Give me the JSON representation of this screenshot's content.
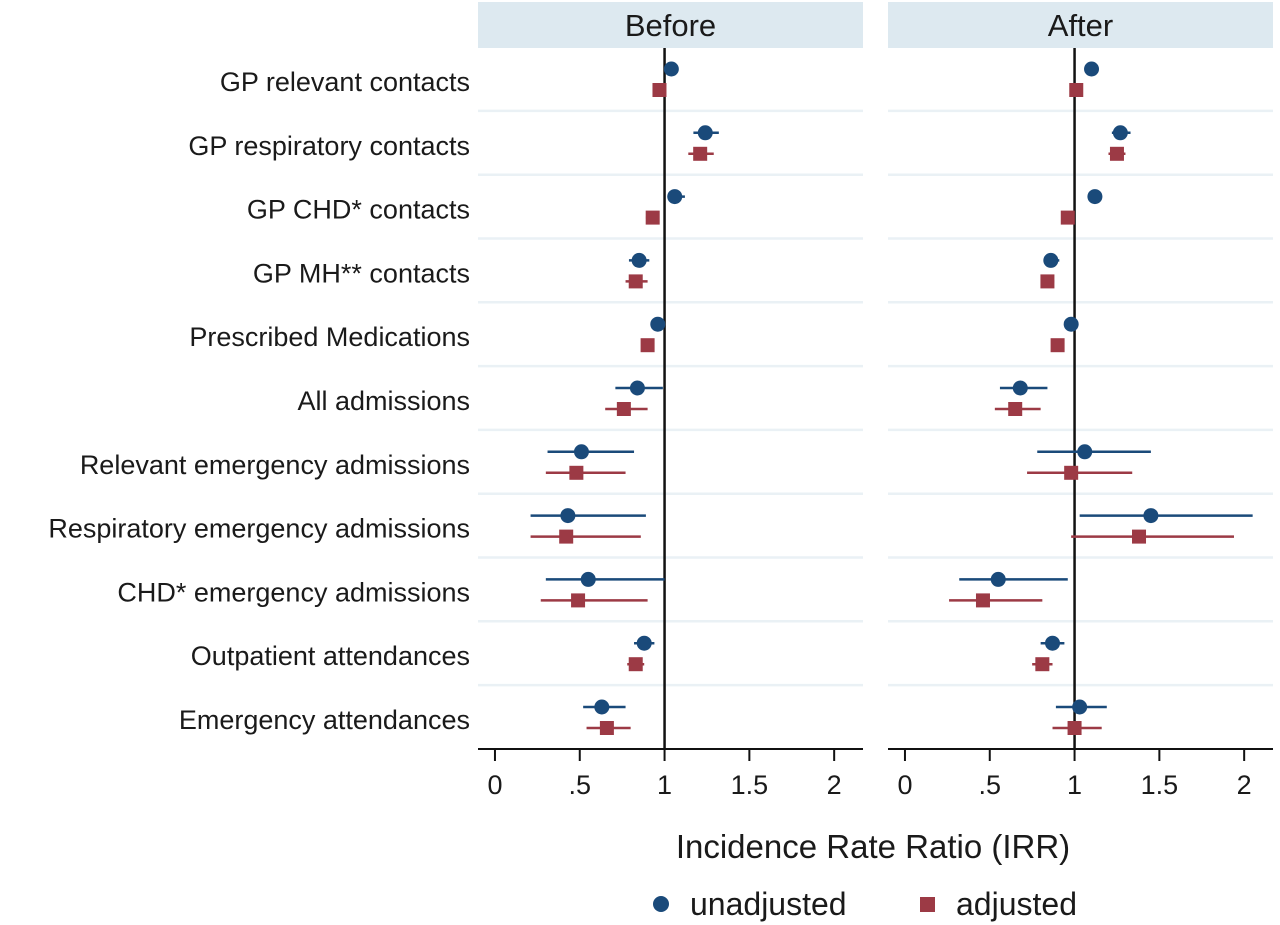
{
  "chart_data": {
    "type": "scatter",
    "subtype": "forest-plot",
    "xlabel": "Incidence Rate Ratio (IRR)",
    "xlim": [
      -0.1,
      2.17
    ],
    "ticks": [
      0,
      0.5,
      1,
      1.5,
      2
    ],
    "tick_labels": [
      "0",
      ".5",
      "1",
      "1.5",
      "2"
    ],
    "reference_line": 1,
    "grid": true,
    "legend_position": "bottom",
    "categories": [
      "GP relevant contacts",
      "GP respiratory contacts",
      "GP CHD* contacts",
      "GP MH** contacts",
      "Prescribed Medications",
      "All admissions",
      "Relevant emergency admissions",
      "Respiratory emergency admissions",
      "CHD* emergency admissions",
      "Outpatient attendances",
      "Emergency attendances"
    ],
    "series": [
      {
        "name": "unadjusted",
        "color": "#1a4a7a",
        "marker": "circle"
      },
      {
        "name": "adjusted",
        "color": "#9c3a45",
        "marker": "square"
      }
    ],
    "panels": [
      {
        "title": "Before",
        "unadjusted": [
          {
            "est": 1.04,
            "lo": 1.02,
            "hi": 1.06
          },
          {
            "est": 1.24,
            "lo": 1.17,
            "hi": 1.32
          },
          {
            "est": 1.06,
            "lo": 1.02,
            "hi": 1.12
          },
          {
            "est": 0.85,
            "lo": 0.79,
            "hi": 0.91
          },
          {
            "est": 0.96,
            "lo": 0.94,
            "hi": 0.98
          },
          {
            "est": 0.84,
            "lo": 0.71,
            "hi": 0.99
          },
          {
            "est": 0.51,
            "lo": 0.31,
            "hi": 0.82
          },
          {
            "est": 0.43,
            "lo": 0.21,
            "hi": 0.89
          },
          {
            "est": 0.55,
            "lo": 0.3,
            "hi": 1.0
          },
          {
            "est": 0.88,
            "lo": 0.82,
            "hi": 0.94
          },
          {
            "est": 0.63,
            "lo": 0.52,
            "hi": 0.77
          }
        ],
        "adjusted": [
          {
            "est": 0.97,
            "lo": 0.95,
            "hi": 0.99
          },
          {
            "est": 1.21,
            "lo": 1.14,
            "hi": 1.29
          },
          {
            "est": 0.93,
            "lo": 0.89,
            "hi": 0.97
          },
          {
            "est": 0.83,
            "lo": 0.77,
            "hi": 0.9
          },
          {
            "est": 0.9,
            "lo": 0.88,
            "hi": 0.92
          },
          {
            "est": 0.76,
            "lo": 0.65,
            "hi": 0.9
          },
          {
            "est": 0.48,
            "lo": 0.3,
            "hi": 0.77
          },
          {
            "est": 0.42,
            "lo": 0.21,
            "hi": 0.86
          },
          {
            "est": 0.49,
            "lo": 0.27,
            "hi": 0.9
          },
          {
            "est": 0.83,
            "lo": 0.78,
            "hi": 0.88
          },
          {
            "est": 0.66,
            "lo": 0.54,
            "hi": 0.8
          }
        ]
      },
      {
        "title": "After",
        "unadjusted": [
          {
            "est": 1.1,
            "lo": 1.08,
            "hi": 1.12
          },
          {
            "est": 1.27,
            "lo": 1.22,
            "hi": 1.33
          },
          {
            "est": 1.12,
            "lo": 1.1,
            "hi": 1.14
          },
          {
            "est": 0.86,
            "lo": 0.82,
            "hi": 0.91
          },
          {
            "est": 0.98,
            "lo": 0.97,
            "hi": 0.99
          },
          {
            "est": 0.68,
            "lo": 0.56,
            "hi": 0.84
          },
          {
            "est": 1.06,
            "lo": 0.78,
            "hi": 1.45
          },
          {
            "est": 1.45,
            "lo": 1.03,
            "hi": 2.05
          },
          {
            "est": 0.55,
            "lo": 0.32,
            "hi": 0.96
          },
          {
            "est": 0.87,
            "lo": 0.8,
            "hi": 0.94
          },
          {
            "est": 1.03,
            "lo": 0.89,
            "hi": 1.19
          }
        ],
        "adjusted": [
          {
            "est": 1.01,
            "lo": 0.99,
            "hi": 1.03
          },
          {
            "est": 1.25,
            "lo": 1.2,
            "hi": 1.3
          },
          {
            "est": 0.96,
            "lo": 0.94,
            "hi": 0.98
          },
          {
            "est": 0.84,
            "lo": 0.8,
            "hi": 0.88
          },
          {
            "est": 0.9,
            "lo": 0.89,
            "hi": 0.91
          },
          {
            "est": 0.65,
            "lo": 0.53,
            "hi": 0.8
          },
          {
            "est": 0.98,
            "lo": 0.72,
            "hi": 1.34
          },
          {
            "est": 1.38,
            "lo": 0.98,
            "hi": 1.94
          },
          {
            "est": 0.46,
            "lo": 0.26,
            "hi": 0.81
          },
          {
            "est": 0.81,
            "lo": 0.75,
            "hi": 0.87
          },
          {
            "est": 1.0,
            "lo": 0.87,
            "hi": 1.16
          }
        ]
      }
    ]
  }
}
